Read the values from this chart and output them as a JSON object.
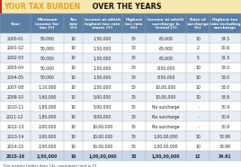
{
  "title_part1": "YOUR TAX BURDEN",
  "title_part2": " OVER THE YEARS",
  "header_bg": "#5b7fa6",
  "title_bg": "#f7e8b0",
  "footnote": "*For income higher than ₹1L, exemption limit is ₹3.",
  "columns": [
    "Year",
    "Minimum\nincome for\ntax (₹)",
    "Tax\nrate\n(%)",
    "Income at which\nhighest tax rate\nstarts (₹)",
    "Highest\ntax rate\n(%)",
    "Income at which\nsurcharge is\nlevied (₹)",
    "Rate of\nsurcharge\n(%)",
    "Highest tax\nrate including\nsurcharge"
  ],
  "rows": [
    [
      "2000-01",
      "50,000",
      "10",
      "1,50,000",
      "30",
      "60,000",
      "10",
      "34.5"
    ],
    [
      "2001-02",
      "50,000",
      "10",
      "1,50,000",
      "30",
      "60,000",
      "2",
      "30.6"
    ],
    [
      "2002-03",
      "50,000",
      "10",
      "1,50,000",
      "30",
      "60,000",
      "5",
      "31.5"
    ],
    [
      "2003-04",
      "50,000",
      "10",
      "1,50,000",
      "30",
      "8,50,000",
      "10",
      "33.0"
    ],
    [
      "2004-05",
      "50,000",
      "10",
      "1,50,000",
      "30",
      "8,50,000",
      "10",
      "33.0"
    ],
    [
      "2007-08",
      "1,10,000",
      "10",
      "2,50,000",
      "30",
      "10,00,000",
      "10",
      "33.0"
    ],
    [
      "2009-10",
      "1,60,000",
      "10",
      "5,00,000",
      "30",
      "10,00,000",
      "10",
      "33.9"
    ],
    [
      "2010-11",
      "1,60,000",
      "10",
      "5,00,000",
      "30",
      "No surcharge",
      "-",
      "30.9"
    ],
    [
      "2011-12",
      "1,80,000",
      "10",
      "8,00,000",
      "30",
      "No surcharge",
      "-",
      "30.9"
    ],
    [
      "2012-13",
      "2,00,000",
      "10",
      "10,00,000",
      "30",
      "No surcharge",
      "-",
      "30.9"
    ],
    [
      "2013-14",
      "2,00,000",
      "10",
      "10,00,000",
      "30",
      "1,00,00,000",
      "10",
      "33.99"
    ],
    [
      "2014-15",
      "2,50,000",
      "10",
      "10,00,000",
      "30",
      "1,00,00,000",
      "10",
      "33.99"
    ],
    [
      "2015-16",
      "2,50,000",
      "10",
      "1,00,00,000",
      "30",
      "1,00,00,000",
      "12",
      "34.61"
    ]
  ],
  "col_widths": [
    0.85,
    0.95,
    0.52,
    1.1,
    0.65,
    1.15,
    0.65,
    0.88
  ],
  "row_colors": [
    "#e8eef5",
    "#ffffff"
  ],
  "last_row_color": "#c8d8ea",
  "header_text_color": "#ffffff",
  "text_color": "#222222",
  "title_orange": "#e8a020",
  "border_color": "#aaaaaa"
}
